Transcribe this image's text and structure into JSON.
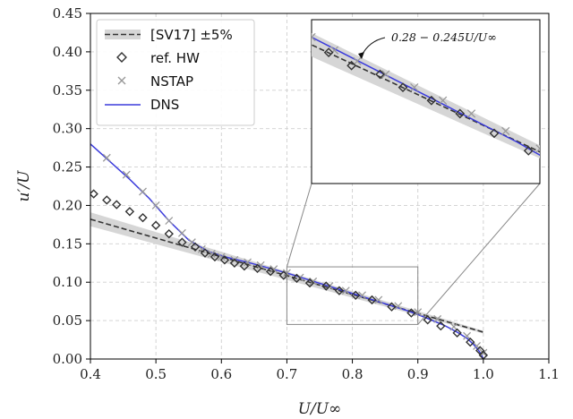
{
  "chart_data": {
    "type": "line",
    "xlabel": "U/U∞",
    "ylabel": "u′/U",
    "xlim": [
      0.4,
      1.1
    ],
    "ylim": [
      0.0,
      0.45
    ],
    "x_ticks": [
      "0.4",
      "0.5",
      "0.6",
      "0.7",
      "0.8",
      "0.9",
      "1.0",
      "1.1"
    ],
    "y_ticks": [
      "0.00",
      "0.05",
      "0.10",
      "0.15",
      "0.20",
      "0.25",
      "0.30",
      "0.35",
      "0.40",
      "0.45"
    ],
    "grid": true,
    "legend_position": "top-left",
    "legend": [
      {
        "label": "[SV17] ±5%",
        "style": "dashed-line-with-band"
      },
      {
        "label": "ref. HW",
        "style": "diamond-marker"
      },
      {
        "label": "NSTAP",
        "style": "x-marker"
      },
      {
        "label": "DNS",
        "style": "solid-line"
      }
    ],
    "colors": {
      "sv17": "#333333",
      "band": "#d6d6d6",
      "hw": "#333333",
      "nstap": "#9a9a9a",
      "dns": "#3b3bdc",
      "box": "#888888"
    },
    "sv17": {
      "intercept": 0.28,
      "slope": -0.245,
      "x_range": [
        0.4,
        1.0
      ],
      "band_percent": 5
    },
    "ref_hw": {
      "x": [
        0.405,
        0.425,
        0.44,
        0.46,
        0.48,
        0.5,
        0.52,
        0.54,
        0.56,
        0.575,
        0.59,
        0.605,
        0.62,
        0.635,
        0.655,
        0.675,
        0.695,
        0.715,
        0.735,
        0.76,
        0.78,
        0.805,
        0.83,
        0.86,
        0.89,
        0.915,
        0.935,
        0.96,
        0.98,
        0.995,
        1.0
      ],
      "y": [
        0.215,
        0.207,
        0.201,
        0.192,
        0.184,
        0.174,
        0.163,
        0.152,
        0.146,
        0.138,
        0.133,
        0.129,
        0.125,
        0.121,
        0.118,
        0.114,
        0.109,
        0.105,
        0.099,
        0.095,
        0.089,
        0.083,
        0.077,
        0.068,
        0.06,
        0.051,
        0.043,
        0.034,
        0.022,
        0.011,
        0.005
      ]
    },
    "nstap": {
      "x": [
        0.425,
        0.455,
        0.48,
        0.5,
        0.52,
        0.54,
        0.555,
        0.57,
        0.585,
        0.6,
        0.62,
        0.64,
        0.66,
        0.68,
        0.7,
        0.72,
        0.74,
        0.765,
        0.79,
        0.815,
        0.84,
        0.87,
        0.9,
        0.93,
        0.955,
        0.975,
        0.99,
        1.0
      ],
      "y": [
        0.262,
        0.24,
        0.218,
        0.2,
        0.18,
        0.164,
        0.152,
        0.143,
        0.137,
        0.133,
        0.129,
        0.126,
        0.122,
        0.117,
        0.112,
        0.106,
        0.101,
        0.095,
        0.089,
        0.083,
        0.077,
        0.069,
        0.061,
        0.052,
        0.042,
        0.03,
        0.017,
        0.008
      ]
    },
    "dns": {
      "x": [
        0.4,
        0.43,
        0.46,
        0.49,
        0.52,
        0.55,
        0.58,
        0.61,
        0.64,
        0.67,
        0.7,
        0.73,
        0.76,
        0.79,
        0.82,
        0.85,
        0.88,
        0.9,
        0.92,
        0.94,
        0.96,
        0.975,
        0.985,
        0.992,
        0.997,
        1.0
      ],
      "y": [
        0.28,
        0.257,
        0.234,
        0.209,
        0.18,
        0.155,
        0.14,
        0.132,
        0.126,
        0.119,
        0.112,
        0.104,
        0.096,
        0.088,
        0.08,
        0.072,
        0.064,
        0.058,
        0.051,
        0.044,
        0.035,
        0.027,
        0.019,
        0.012,
        0.006,
        0.0
      ]
    },
    "zoom_box": {
      "x": [
        0.7,
        0.9
      ],
      "y": [
        0.045,
        0.12
      ]
    },
    "inset": {
      "annotation": "0.28 − 0.245U/U∞"
    }
  }
}
